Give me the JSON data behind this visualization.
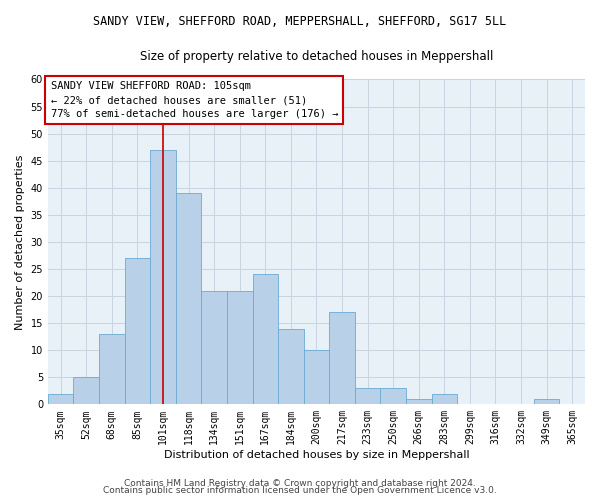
{
  "title_line1": "SANDY VIEW, SHEFFORD ROAD, MEPPERSHALL, SHEFFORD, SG17 5LL",
  "title_line2": "Size of property relative to detached houses in Meppershall",
  "xlabel": "Distribution of detached houses by size in Meppershall",
  "ylabel": "Number of detached properties",
  "categories": [
    "35sqm",
    "52sqm",
    "68sqm",
    "85sqm",
    "101sqm",
    "118sqm",
    "134sqm",
    "151sqm",
    "167sqm",
    "184sqm",
    "200sqm",
    "217sqm",
    "233sqm",
    "250sqm",
    "266sqm",
    "283sqm",
    "299sqm",
    "316sqm",
    "332sqm",
    "349sqm",
    "365sqm"
  ],
  "values": [
    2,
    5,
    13,
    27,
    47,
    39,
    21,
    21,
    24,
    14,
    10,
    17,
    3,
    3,
    1,
    2,
    0,
    0,
    0,
    1,
    0
  ],
  "bar_color": "#b8d0e8",
  "bar_edge_color": "#6aaad4",
  "grid_color": "#c8d4e0",
  "background_color": "#e8f0f8",
  "vline_x": 4,
  "vline_color": "#cc0000",
  "annotation_text": "SANDY VIEW SHEFFORD ROAD: 105sqm\n← 22% of detached houses are smaller (51)\n77% of semi-detached houses are larger (176) →",
  "annotation_box_color": "#ffffff",
  "annotation_box_edge": "#cc0000",
  "ylim": [
    0,
    60
  ],
  "yticks": [
    0,
    5,
    10,
    15,
    20,
    25,
    30,
    35,
    40,
    45,
    50,
    55,
    60
  ],
  "footer_line1": "Contains HM Land Registry data © Crown copyright and database right 2024.",
  "footer_line2": "Contains public sector information licensed under the Open Government Licence v3.0.",
  "title_fontsize": 8.5,
  "subtitle_fontsize": 8.5,
  "axis_label_fontsize": 8,
  "tick_fontsize": 7,
  "annotation_fontsize": 7.5,
  "footer_fontsize": 6.5
}
